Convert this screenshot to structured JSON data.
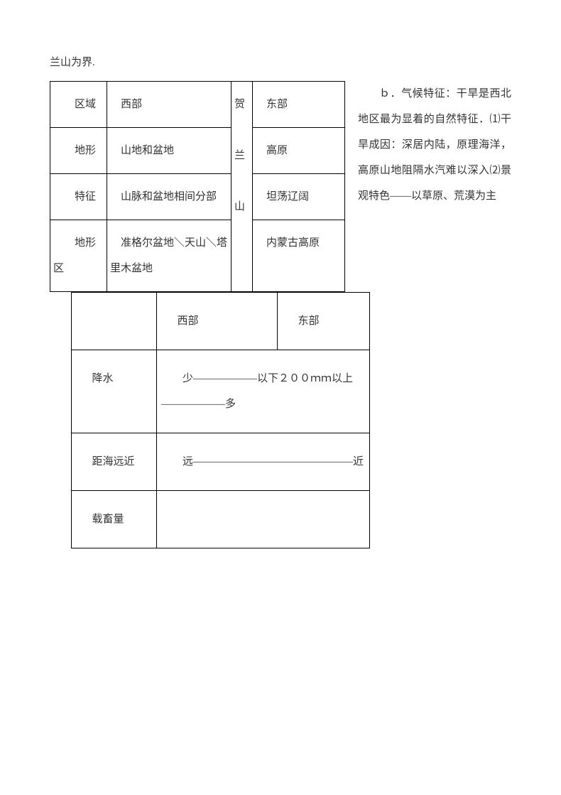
{
  "intro": "兰山为界.",
  "table1": {
    "middle_text": "贺兰山",
    "rows": [
      {
        "label": "区域",
        "west": "西部",
        "east": "东部"
      },
      {
        "label": "地形",
        "west": "山地和盆地",
        "east": "高原"
      },
      {
        "label": "特征",
        "west": "山脉和盆地相间分部",
        "east": "坦荡辽阔"
      },
      {
        "label": "地形区",
        "west": "准格尔盆地＼天山＼塔里木盆地",
        "east": "内蒙古高原"
      }
    ]
  },
  "side_paragraph": "ｂ．气候特征：干旱是西北地区最为显着的自然特征．⑴干旱成因：深居内陆，原理海洋，高原山地阻隔水汽难以深入⑵景观特色——以草原、荒漠为主",
  "table2": {
    "header": {
      "west": "西部",
      "east": "东部"
    },
    "rows": [
      {
        "label": "降水",
        "value": "少——————以下２００ｍｍ以上——————多"
      },
      {
        "label": "距海远近",
        "value": "远———————————————近"
      },
      {
        "label": "载畜量",
        "value": ""
      }
    ]
  },
  "colors": {
    "text": "#333333",
    "border": "#000000",
    "background": "#ffffff"
  },
  "typography": {
    "font_family": "SimSun",
    "font_size_pt": 11,
    "line_height": 2.4
  }
}
